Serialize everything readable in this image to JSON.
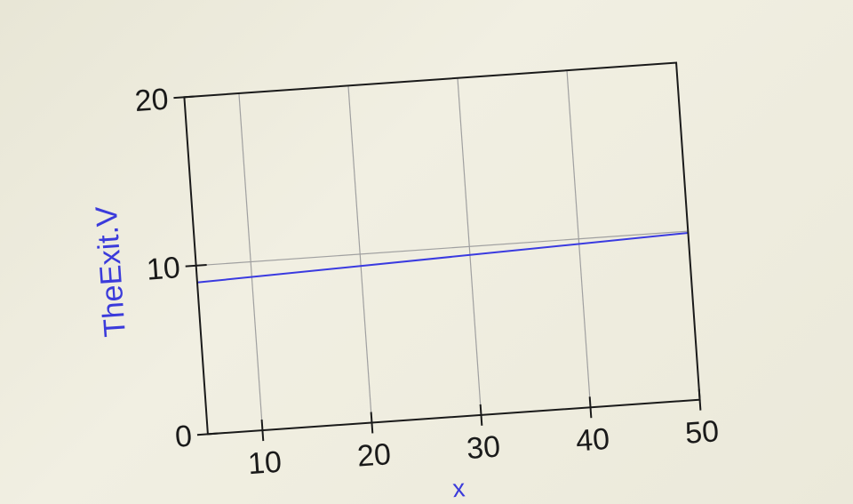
{
  "chart_data": {
    "type": "line",
    "title": "",
    "xlabel": "x",
    "ylabel": "TheExit.V",
    "xlim": [
      5,
      50
    ],
    "ylim": [
      0,
      20
    ],
    "x_ticks": [
      10,
      20,
      30,
      40,
      50
    ],
    "y_ticks": [
      0,
      10,
      20
    ],
    "x_tick_labels": [
      "10",
      "20",
      "30",
      "40",
      "50"
    ],
    "y_tick_labels": [
      "0",
      "10",
      "20"
    ],
    "grid": true,
    "series": [
      {
        "color": "#3a3ae0",
        "x": [
          5,
          50
        ],
        "y": [
          9.0,
          9.9
        ]
      }
    ]
  },
  "colors": {
    "series": "#3a3ae0",
    "ylabel": "#3b3bdb",
    "xlabel": "#3b3bdb",
    "grid": "#a0a0a0",
    "frame": "#1a1a1a",
    "background": "#eeecdf"
  }
}
